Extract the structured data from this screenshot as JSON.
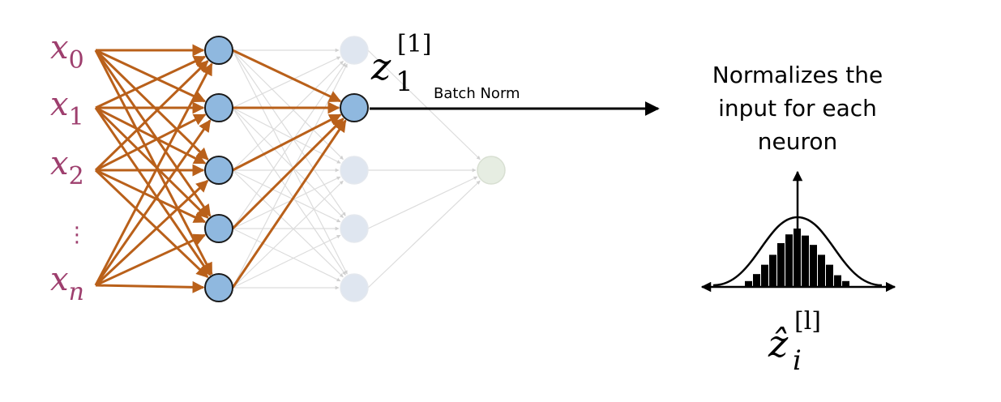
{
  "inputs": [
    {
      "base": "x",
      "sub": "0"
    },
    {
      "base": "x",
      "sub": "1"
    },
    {
      "base": "x",
      "sub": "2"
    },
    {
      "base": "x",
      "sub": "n"
    }
  ],
  "input_ellipsis": "⋮",
  "neuron_label": {
    "base": "z",
    "sub": "1",
    "sup": "[1]"
  },
  "batch_norm_label": "Batch Norm",
  "description_lines": [
    "Normalizes the",
    "input for each",
    "neuron"
  ],
  "output_label": {
    "base": "ẑ",
    "sub": "i",
    "sup": "[l]"
  },
  "histogram_bars": [
    0.1,
    0.22,
    0.38,
    0.55,
    0.75,
    0.9,
    1.0,
    0.88,
    0.72,
    0.55,
    0.38,
    0.2,
    0.1
  ],
  "colors": {
    "input_text": "#9e3f6e",
    "active_edge": "#b9601a",
    "node_fill": "#8fb8df",
    "node_stroke": "#1a1a1a",
    "faded_node": "#dfe6f0",
    "faded_edge": "#dcdcdc",
    "output_node": "#e6ede2",
    "ink": "#000000"
  }
}
